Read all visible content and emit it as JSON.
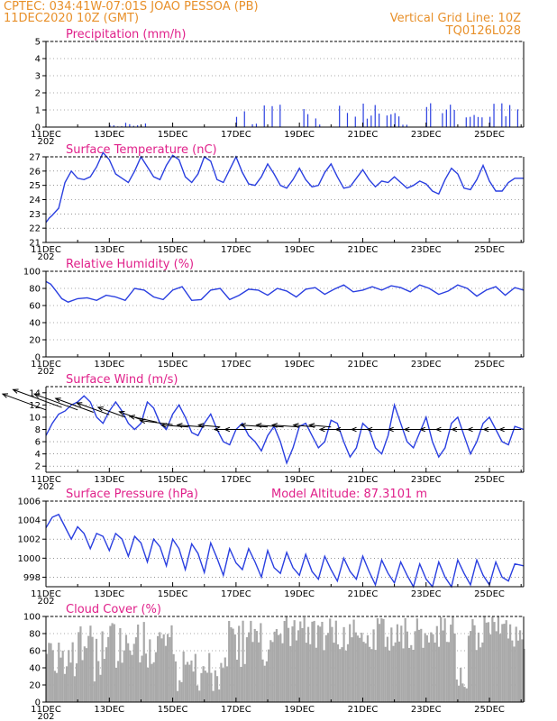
{
  "header": {
    "location": "CPTEC:   034:41W-07:01S   JOAO PESSOA (PB)",
    "run_time": "11DEC2020 10Z (GMT)",
    "vertical_grid": "Vertical Grid Line: 10Z",
    "product_code": "TQ0126L028"
  },
  "colors": {
    "header": "#e8902a",
    "title": "#e0208a",
    "line": "#2a3fe0",
    "bar": "#2a3fe0",
    "cloud": "#a9a9a9",
    "grid": "#555555"
  },
  "x_axis": {
    "tick_labels": [
      "11DEC",
      "13DEC",
      "15DEC",
      "17DEC",
      "19DEC",
      "21DEC",
      "23DEC",
      "25DEC"
    ],
    "tick_days": [
      0,
      2,
      4,
      6,
      8,
      10,
      12,
      14
    ],
    "range_days": [
      0,
      15.08
    ],
    "year_fragment": "202"
  },
  "chart_data": [
    {
      "id": "precip",
      "type": "bar",
      "title": "Precipitation (mm/h)",
      "ylim": [
        0,
        5
      ],
      "yticks": [
        0,
        1,
        2,
        3,
        4,
        5
      ],
      "grid": "dotted",
      "x_unit": "days since 11DEC2020 10Z",
      "step": 0.125,
      "series": [
        {
          "values": "hourly bars, estimated; see script"
        }
      ]
    },
    {
      "id": "temp",
      "type": "line",
      "title": "Surface Temperature (nC)",
      "ylim": [
        21,
        27
      ],
      "yticks": [
        21,
        22,
        23,
        24,
        25,
        26,
        27
      ],
      "grid": "dotted",
      "series": [
        {
          "x": [
            0,
            0.1,
            0.2,
            0.4,
            0.6,
            0.8,
            1.0,
            1.2,
            1.4,
            1.6,
            1.8,
            2.0,
            2.2,
            2.4,
            2.6,
            2.8,
            3.0,
            3.2,
            3.4,
            3.6,
            3.8,
            4.0,
            4.2,
            4.4,
            4.6,
            4.8,
            5.0,
            5.2,
            5.4,
            5.6,
            5.8,
            6.0,
            6.2,
            6.4,
            6.6,
            6.8,
            7.0,
            7.2,
            7.4,
            7.6,
            7.8,
            8.0,
            8.2,
            8.4,
            8.6,
            8.8,
            9.0,
            9.2,
            9.4,
            9.6,
            9.8,
            10.0,
            10.2,
            10.4,
            10.6,
            10.8,
            11.0,
            11.2,
            11.4,
            11.6,
            11.8,
            12.0,
            12.2,
            12.4,
            12.6,
            12.8,
            13.0,
            13.2,
            13.4,
            13.6,
            13.8,
            14.0,
            14.2,
            14.4,
            14.6,
            14.8,
            15.08
          ],
          "y": [
            22.4,
            22.7,
            22.9,
            23.4,
            25.2,
            26.0,
            25.5,
            25.4,
            25.6,
            26.3,
            27.3,
            26.8,
            25.8,
            25.5,
            25.2,
            26.0,
            27.0,
            26.3,
            25.6,
            25.4,
            26.4,
            27.1,
            26.8,
            25.6,
            25.2,
            25.8,
            27.0,
            26.7,
            25.4,
            25.2,
            26.1,
            27.0,
            25.9,
            25.1,
            25.0,
            25.6,
            26.5,
            25.8,
            25.0,
            24.8,
            25.4,
            26.2,
            25.4,
            24.9,
            25.0,
            25.9,
            26.5,
            25.6,
            24.8,
            24.9,
            25.5,
            26.1,
            25.4,
            24.9,
            25.3,
            25.2,
            25.6,
            25.2,
            24.8,
            25.0,
            25.3,
            25.1,
            24.6,
            24.4,
            25.4,
            26.2,
            25.8,
            24.8,
            24.7,
            25.4,
            26.4,
            25.3,
            24.6,
            24.6,
            25.2,
            25.5,
            25.5
          ]
        }
      ]
    },
    {
      "id": "rh",
      "type": "line",
      "title": "Relative Humidity (%)",
      "ylim": [
        0,
        100
      ],
      "yticks": [
        0,
        20,
        40,
        60,
        80,
        100
      ],
      "grid": "dotted",
      "series": [
        {
          "x": [
            0,
            0.15,
            0.3,
            0.5,
            0.7,
            1.0,
            1.3,
            1.6,
            1.9,
            2.2,
            2.5,
            2.8,
            3.1,
            3.4,
            3.7,
            4.0,
            4.3,
            4.6,
            4.9,
            5.2,
            5.5,
            5.8,
            6.1,
            6.4,
            6.7,
            7.0,
            7.3,
            7.6,
            7.9,
            8.2,
            8.5,
            8.8,
            9.1,
            9.4,
            9.7,
            10.0,
            10.3,
            10.6,
            10.9,
            11.2,
            11.5,
            11.8,
            12.1,
            12.4,
            12.7,
            13.0,
            13.3,
            13.6,
            13.9,
            14.2,
            14.5,
            14.8,
            15.08
          ],
          "y": [
            88,
            85,
            78,
            68,
            64,
            68,
            69,
            66,
            72,
            70,
            66,
            80,
            78,
            70,
            67,
            78,
            82,
            66,
            67,
            78,
            80,
            67,
            72,
            79,
            78,
            72,
            80,
            77,
            70,
            79,
            81,
            73,
            79,
            84,
            76,
            78,
            82,
            78,
            83,
            81,
            76,
            84,
            80,
            73,
            77,
            84,
            80,
            71,
            78,
            82,
            72,
            81,
            78
          ]
        }
      ]
    },
    {
      "id": "wind",
      "type": "line",
      "title": "Surface Wind (m/s)",
      "ylim": [
        1,
        15
      ],
      "yticks": [
        2,
        4,
        6,
        8,
        10,
        12,
        14
      ],
      "grid": "dotted",
      "series": [
        {
          "x": [
            0,
            0.2,
            0.4,
            0.6,
            0.8,
            1.0,
            1.2,
            1.4,
            1.6,
            1.8,
            2.0,
            2.2,
            2.4,
            2.6,
            2.8,
            3.0,
            3.2,
            3.4,
            3.6,
            3.8,
            4.0,
            4.2,
            4.4,
            4.6,
            4.8,
            5.0,
            5.2,
            5.4,
            5.6,
            5.8,
            6.0,
            6.2,
            6.4,
            6.6,
            6.8,
            7.0,
            7.2,
            7.4,
            7.6,
            7.8,
            8.0,
            8.2,
            8.4,
            8.6,
            8.8,
            9.0,
            9.2,
            9.4,
            9.6,
            9.8,
            10.0,
            10.2,
            10.4,
            10.6,
            10.8,
            11.0,
            11.2,
            11.4,
            11.6,
            11.8,
            12.0,
            12.2,
            12.4,
            12.6,
            12.8,
            13.0,
            13.2,
            13.4,
            13.6,
            13.8,
            14.0,
            14.2,
            14.4,
            14.6,
            14.8,
            15.08
          ],
          "y": [
            7,
            9,
            10.5,
            11,
            12,
            12.5,
            13.5,
            12.5,
            10,
            9,
            11,
            12.5,
            11,
            9,
            8,
            9,
            12.5,
            11.5,
            9,
            8,
            10.5,
            12,
            10,
            7.5,
            7,
            9,
            10.5,
            8,
            6,
            5.5,
            8,
            9,
            7,
            6,
            4.5,
            7,
            8.5,
            6,
            2.5,
            5,
            8.5,
            9,
            7,
            5,
            6,
            9.5,
            9,
            6,
            3.5,
            5,
            9,
            8,
            5,
            4,
            7,
            12,
            9,
            6,
            5,
            7.5,
            10,
            6,
            3.5,
            5,
            9,
            10,
            7,
            4,
            6,
            9,
            10,
            8,
            6,
            5.5,
            8.5,
            8
          ]
        }
      ],
      "arrows": {
        "description": "wind direction vectors",
        "x": [
          0,
          0.5,
          1.0,
          1.5,
          2.0,
          2.5,
          3.0,
          3.5,
          4.0,
          4.5,
          5.0,
          5.5,
          6.0,
          6.5,
          7.0,
          7.5,
          8.0,
          8.5,
          9.0,
          9.5,
          10.0,
          10.5,
          11.0,
          11.5,
          12.0,
          12.5,
          13.0,
          13.5,
          14.0,
          14.5,
          15.0
        ],
        "u": [
          -8,
          -9,
          -8,
          -7,
          -6,
          -5,
          -4,
          -5,
          -6,
          -5,
          -5,
          -4,
          -4,
          -5,
          -5,
          -5,
          -5,
          -4,
          -4,
          -5,
          -5,
          -5,
          -5,
          -4,
          -4,
          -4,
          -4,
          -4,
          -4,
          -4,
          -4
        ],
        "v": [
          8,
          9,
          8,
          7,
          6,
          5,
          4,
          3,
          2,
          1,
          1,
          1,
          0,
          0,
          1,
          1,
          1,
          1,
          1,
          0,
          0,
          0,
          0,
          0,
          0,
          0,
          0,
          0,
          0,
          0,
          0
        ]
      }
    },
    {
      "id": "pres",
      "type": "line",
      "title": "Surface Pressure (hPa)",
      "annotation": "Model Altitude: 87.3101  m",
      "ylim": [
        997,
        1006
      ],
      "yticks": [
        998,
        1000,
        1002,
        1004,
        1006
      ],
      "grid": "dotted",
      "series": [
        {
          "x": [
            0,
            0.2,
            0.4,
            0.6,
            0.8,
            1.0,
            1.2,
            1.4,
            1.6,
            1.8,
            2.0,
            2.2,
            2.4,
            2.6,
            2.8,
            3.0,
            3.2,
            3.4,
            3.6,
            3.8,
            4.0,
            4.2,
            4.4,
            4.6,
            4.8,
            5.0,
            5.2,
            5.4,
            5.6,
            5.8,
            6.0,
            6.2,
            6.4,
            6.6,
            6.8,
            7.0,
            7.2,
            7.4,
            7.6,
            7.8,
            8.0,
            8.2,
            8.4,
            8.6,
            8.8,
            9.0,
            9.2,
            9.4,
            9.6,
            9.8,
            10.0,
            10.2,
            10.4,
            10.6,
            10.8,
            11.0,
            11.2,
            11.4,
            11.6,
            11.8,
            12.0,
            12.2,
            12.4,
            12.6,
            12.8,
            13.0,
            13.2,
            13.4,
            13.6,
            13.8,
            14.0,
            14.2,
            14.4,
            14.6,
            14.8,
            15.08
          ],
          "y": [
            1003.2,
            1004.3,
            1004.6,
            1003.3,
            1002.0,
            1003.3,
            1002.6,
            1001.0,
            1002.6,
            1002.3,
            1000.8,
            1002.6,
            1002.0,
            1000.2,
            1002.3,
            1001.6,
            999.6,
            1002.0,
            1001.2,
            999.2,
            1002.0,
            1001.0,
            998.8,
            1001.5,
            1000.5,
            998.5,
            1001.6,
            1000.0,
            998.2,
            1001.0,
            999.5,
            998.8,
            1001.0,
            999.6,
            998.0,
            1000.8,
            999.0,
            998.4,
            1000.6,
            999.0,
            998.2,
            1000.4,
            998.6,
            997.8,
            1000.2,
            998.8,
            997.6,
            1000.0,
            998.6,
            997.8,
            1000.2,
            998.6,
            997.2,
            999.8,
            998.4,
            997.4,
            999.6,
            998.2,
            997.0,
            999.4,
            997.8,
            997.0,
            999.6,
            998.0,
            997.0,
            999.8,
            998.4,
            997.2,
            999.8,
            998.2,
            997.2,
            999.6,
            998.0,
            997.6,
            999.4,
            999.2
          ]
        }
      ]
    },
    {
      "id": "cloud",
      "type": "bar",
      "title": "Cloud Cover (%)",
      "ylim": [
        0,
        100
      ],
      "yticks": [
        0,
        20,
        40,
        60,
        80,
        100
      ],
      "grid": "dotted",
      "x_unit": "days since 11DEC2020 10Z",
      "step": 0.0625,
      "series": [
        {
          "values": "estimated hourly cloud fraction; see script"
        }
      ]
    }
  ]
}
